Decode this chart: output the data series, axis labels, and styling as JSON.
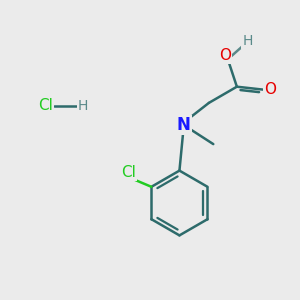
{
  "background_color": "#ebebeb",
  "bond_color": "#2d6b6b",
  "bond_width": 1.8,
  "atom_colors": {
    "O": "#e60000",
    "N": "#1a1aff",
    "Cl_green": "#22cc22",
    "H_gray": "#5a8a8a",
    "C": "#2d6b6b"
  },
  "font_size_atom": 11,
  "figsize": [
    3.0,
    3.0
  ],
  "dpi": 100
}
